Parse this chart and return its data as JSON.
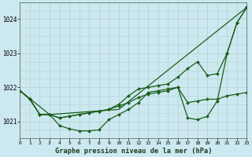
{
  "title": "Graphe pression niveau de la mer (hPa)",
  "bg_color": "#cce8f0",
  "grid_color": "#b8d4d4",
  "line_color": "#1a5e1a",
  "xlim": [
    0,
    23
  ],
  "ylim": [
    1020.5,
    1024.5
  ],
  "yticks": [
    1021,
    1022,
    1023,
    1024
  ],
  "xticks": [
    0,
    1,
    2,
    3,
    4,
    5,
    6,
    7,
    8,
    9,
    10,
    11,
    12,
    13,
    14,
    15,
    16,
    17,
    18,
    19,
    20,
    21,
    22,
    23
  ],
  "line_straight": {
    "x": [
      0,
      3,
      10,
      23
    ],
    "y": [
      1021.9,
      1021.2,
      1021.35,
      1024.35
    ]
  },
  "line_mid": {
    "x": [
      0,
      1,
      2,
      3,
      4,
      5,
      6,
      7,
      8,
      9,
      10,
      11,
      12,
      13,
      14,
      15,
      16,
      17,
      18,
      19,
      20,
      21,
      22,
      23
    ],
    "y": [
      1021.9,
      1021.65,
      1021.2,
      1021.2,
      1021.1,
      1021.15,
      1021.2,
      1021.25,
      1021.3,
      1021.35,
      1021.45,
      1021.55,
      1021.7,
      1021.8,
      1021.85,
      1021.9,
      1022.0,
      1021.55,
      1021.6,
      1021.65,
      1021.65,
      1021.75,
      1021.8,
      1021.85
    ]
  },
  "line_deep": {
    "x": [
      0,
      1,
      2,
      3,
      4,
      5,
      6,
      7,
      8,
      9,
      10,
      11,
      12,
      13,
      14,
      15,
      16,
      17,
      18,
      19,
      20,
      21,
      22,
      23
    ],
    "y": [
      1021.9,
      1021.65,
      1021.2,
      1021.2,
      1020.88,
      1020.78,
      1020.72,
      1020.72,
      1020.75,
      1021.05,
      1021.2,
      1021.35,
      1021.55,
      1021.85,
      1021.9,
      1021.95,
      1022.0,
      1021.1,
      1021.05,
      1021.15,
      1021.6,
      1023.0,
      1023.9,
      1024.35
    ]
  },
  "line_upper": {
    "x": [
      0,
      1,
      2,
      3,
      4,
      5,
      6,
      7,
      8,
      9,
      10,
      11,
      12,
      13,
      14,
      15,
      16,
      17,
      18,
      19,
      20,
      21,
      22,
      23
    ],
    "y": [
      1021.9,
      1021.65,
      1021.2,
      1021.2,
      1021.1,
      1021.15,
      1021.2,
      1021.25,
      1021.3,
      1021.35,
      1021.5,
      1021.75,
      1021.95,
      1022.0,
      1022.05,
      1022.1,
      1022.3,
      1022.55,
      1022.75,
      1022.35,
      1022.4,
      1023.0,
      1023.9,
      1024.35
    ]
  }
}
